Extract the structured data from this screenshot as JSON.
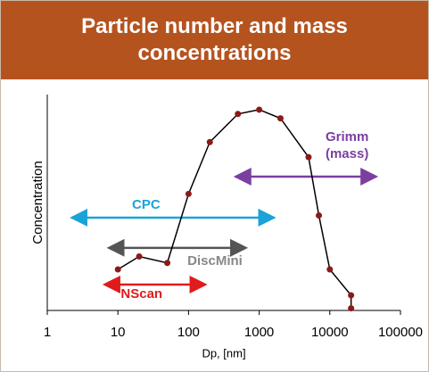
{
  "chart_data": {
    "type": "line",
    "title": "Particle number and mass concentrations",
    "x_label": "Dp, [nm]",
    "y_label": "Concentration",
    "x": [
      10,
      20,
      50,
      100,
      200,
      500,
      1000,
      2000,
      5000,
      7000,
      10000,
      20000,
      20000
    ],
    "series": [
      {
        "name": "Concentration",
        "color": "#000000",
        "marker_color": "#8b1a1a",
        "values": [
          19,
          25,
          22,
          54,
          78,
          91,
          93,
          89,
          71,
          44,
          19,
          7,
          1
        ]
      }
    ],
    "xscale": "log",
    "xlim": [
      1,
      100000
    ],
    "xticks": [
      1,
      10,
      100,
      1000,
      10000,
      100000
    ],
    "ylim": [
      0,
      100
    ],
    "grid": false,
    "annotations": [
      {
        "text": "CPC",
        "range": [
          2.4,
          1500
        ],
        "y": 43,
        "color": "#1aa3d8"
      },
      {
        "text": "Grimm (mass)",
        "range": [
          500,
          42000
        ],
        "y": 62,
        "color": "#7b3fa0"
      },
      {
        "text": "DiscMini",
        "range": [
          8,
          600
        ],
        "y": 29,
        "color": "#555555"
      },
      {
        "text": "NScan",
        "range": [
          7,
          160
        ],
        "y": 12,
        "color": "#e01b1b"
      }
    ]
  }
}
